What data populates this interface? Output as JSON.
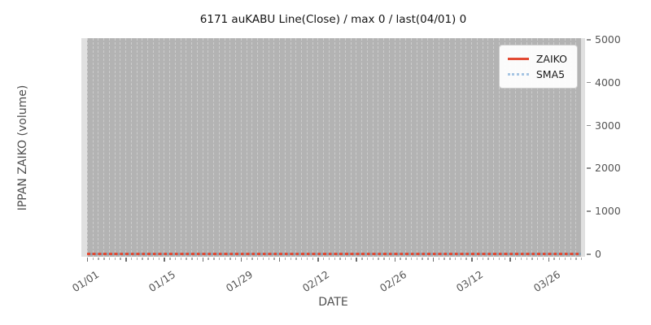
{
  "chart_data": {
    "type": "line",
    "title": "6171 auKABU Line(Close) / max 0 / last(04/01) 0",
    "xlabel": "DATE",
    "ylabel": "IPPAN ZAIKO (volume)",
    "x_start": "01/01",
    "x_end": "04/01",
    "days": 91,
    "x_major_labels": [
      {
        "label": "01/01",
        "day": 0
      },
      {
        "label": "01/15",
        "day": 14
      },
      {
        "label": "01/29",
        "day": 28
      },
      {
        "label": "02/12",
        "day": 42
      },
      {
        "label": "02/26",
        "day": 56
      },
      {
        "label": "03/12",
        "day": 70
      },
      {
        "label": "03/26",
        "day": 84
      }
    ],
    "minor_tick_every_days": 1,
    "major_tick_every_days": 7,
    "y_ticks": [
      0,
      1000,
      2000,
      3000,
      4000,
      5000
    ],
    "ylim": [
      0,
      5000
    ],
    "y_axis_side": "right",
    "series": [
      {
        "name": "ZAIKO",
        "style": "solid",
        "color": "#e24a33",
        "constant_value": 0
      },
      {
        "name": "SMA5",
        "style": "dotted",
        "color": "#a6c5e3",
        "constant_value": 0
      }
    ],
    "legend": {
      "position": "upper right",
      "entries": [
        "ZAIKO",
        "SMA5"
      ]
    },
    "grid": {
      "vertical_daily_dashed": true,
      "horizontal": false
    },
    "annotations": {
      "max": 0,
      "last_date": "04/01",
      "last_value": 0
    }
  },
  "style": {
    "figure_bg": "#ffffff",
    "plot_bg": "#e0e0e0",
    "band_bg": "#b3b3b3",
    "gridline_color": "#cdcdcd",
    "tick_label_color": "#555555",
    "axis_label_color": "#4f4f4f",
    "title_color": "#141414",
    "zaiko_color": "#e24a33",
    "sma5_color": "#a6c5e3",
    "sma5_on_plot_overlay": "#8fa3b0"
  }
}
